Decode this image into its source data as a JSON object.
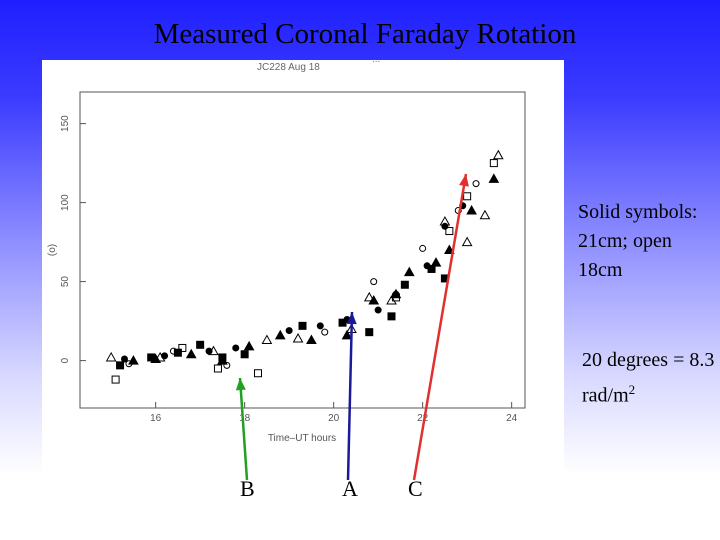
{
  "slide": {
    "title": "Measured Coronal Faraday Rotation",
    "notes": {
      "symbols": "Solid symbols: 21cm; open 18cm",
      "degrees_main": "20 degrees = 8.3 rad/m",
      "degrees_sup": "2"
    }
  },
  "scan": {
    "header": "JC228  Aug 18",
    "corner": "..."
  },
  "markers": [
    {
      "label": "B",
      "color": "#22a022"
    },
    {
      "label": "A",
      "color": "#1a1a99"
    },
    {
      "label": "C",
      "color": "#e03030"
    }
  ],
  "chart_data": {
    "type": "scatter",
    "xlabel": "Time–UT hours",
    "ylabel": "(o)",
    "xlim": [
      14.3,
      24.3
    ],
    "ylim": [
      -30,
      170
    ],
    "x_ticks": [
      "18",
      "20",
      "22",
      "24"
    ],
    "x_tick_values": [
      18,
      20,
      22,
      24
    ],
    "x_ticks_left": [
      "16"
    ],
    "x_tick_left_values": [
      16
    ],
    "y_ticks": [
      "0",
      "50",
      "100",
      "150"
    ],
    "y_tick_values": [
      0,
      50,
      100,
      150
    ],
    "grid": false,
    "series": [
      {
        "shape": "square",
        "filled": true,
        "points": [
          [
            15.2,
            -3
          ],
          [
            15.9,
            2
          ],
          [
            16.5,
            5
          ],
          [
            17.0,
            10
          ],
          [
            17.5,
            2
          ],
          [
            18.0,
            4
          ],
          [
            19.3,
            22
          ],
          [
            20.2,
            24
          ],
          [
            20.8,
            18
          ],
          [
            21.3,
            28
          ],
          [
            21.6,
            48
          ],
          [
            22.2,
            58
          ],
          [
            22.5,
            52
          ]
        ]
      },
      {
        "shape": "triangle",
        "filled": true,
        "points": [
          [
            15.5,
            0
          ],
          [
            16.0,
            1
          ],
          [
            16.8,
            4
          ],
          [
            17.5,
            0
          ],
          [
            18.1,
            9
          ],
          [
            18.8,
            16
          ],
          [
            19.5,
            13
          ],
          [
            20.3,
            16
          ],
          [
            20.9,
            38
          ],
          [
            21.4,
            42
          ],
          [
            21.7,
            56
          ],
          [
            22.3,
            62
          ],
          [
            22.6,
            70
          ],
          [
            23.1,
            95
          ],
          [
            23.6,
            115
          ]
        ]
      },
      {
        "shape": "circle",
        "filled": true,
        "points": [
          [
            15.3,
            1
          ],
          [
            16.2,
            3
          ],
          [
            17.2,
            6
          ],
          [
            17.8,
            8
          ],
          [
            19.0,
            19
          ],
          [
            19.7,
            22
          ],
          [
            20.3,
            26
          ],
          [
            21.0,
            32
          ],
          [
            21.4,
            42
          ],
          [
            22.1,
            60
          ],
          [
            22.5,
            85
          ],
          [
            22.9,
            98
          ]
        ]
      },
      {
        "shape": "square",
        "filled": false,
        "points": [
          [
            15.1,
            -12
          ],
          [
            16.6,
            8
          ],
          [
            17.4,
            -5
          ],
          [
            18.3,
            -8
          ],
          [
            21.4,
            40
          ],
          [
            22.6,
            82
          ],
          [
            23.0,
            104
          ],
          [
            23.6,
            125
          ]
        ]
      },
      {
        "shape": "triangle",
        "filled": false,
        "points": [
          [
            15.0,
            2
          ],
          [
            16.1,
            2
          ],
          [
            17.3,
            6
          ],
          [
            18.5,
            13
          ],
          [
            19.2,
            14
          ],
          [
            20.4,
            20
          ],
          [
            20.8,
            40
          ],
          [
            21.3,
            38
          ],
          [
            22.5,
            88
          ],
          [
            23.0,
            75
          ],
          [
            23.4,
            92
          ],
          [
            23.7,
            130
          ]
        ]
      },
      {
        "shape": "circle",
        "filled": false,
        "points": [
          [
            15.4,
            -2
          ],
          [
            16.4,
            6
          ],
          [
            17.6,
            -3
          ],
          [
            19.8,
            18
          ],
          [
            20.9,
            50
          ],
          [
            22.0,
            71
          ],
          [
            22.8,
            95
          ],
          [
            23.2,
            112
          ]
        ]
      }
    ]
  }
}
